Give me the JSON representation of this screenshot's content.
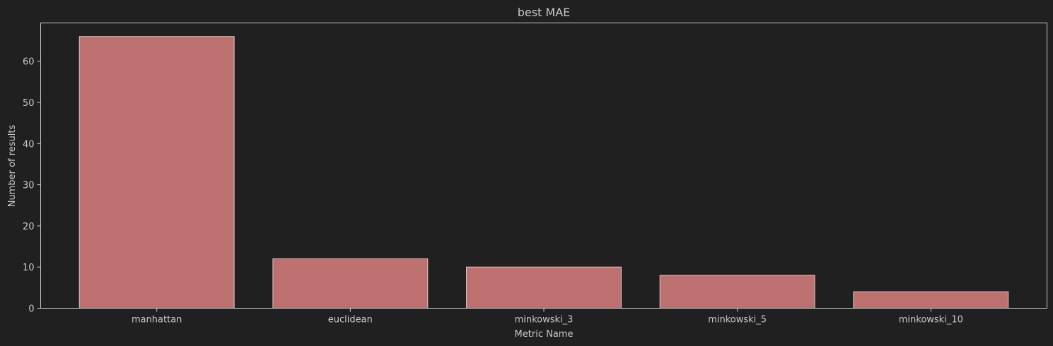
{
  "chart_data": {
    "type": "bar",
    "title": "best MAE",
    "xlabel": "Metric Name",
    "ylabel": "Number of results",
    "categories": [
      "manhattan",
      "euclidean",
      "minkowski_3",
      "minkowski_5",
      "minkowski_10"
    ],
    "values": [
      66,
      12,
      10,
      8,
      4
    ],
    "ylim": [
      0,
      69.3
    ],
    "yticks": [
      0,
      10,
      20,
      30,
      40,
      50,
      60
    ],
    "grid": false,
    "legend": "none",
    "colors": {
      "background": "#202020",
      "bar_fill": "#bc7170",
      "bar_edge": "#d8c7c5",
      "axis": "#c8c8c8",
      "text": "#c8c8c8"
    }
  }
}
